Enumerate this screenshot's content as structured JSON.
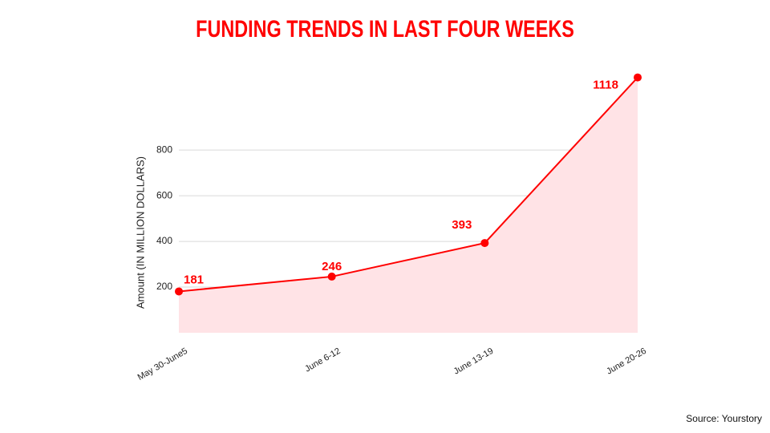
{
  "chart_data": {
    "type": "area-line",
    "title": "FUNDING TRENDS IN LAST FOUR WEEKS",
    "y_label": "Amount (IN MILLION DOLLARS)",
    "source": "Source: Yourstory",
    "categories": [
      "May 30-June5",
      "June 6-12",
      "June 13-19",
      "June 20-26"
    ],
    "values": [
      181,
      246,
      393,
      1118
    ],
    "color": "#ff0000",
    "fill_color": "#ffe3e6",
    "ylim": [
      0,
      1120
    ],
    "yticks": [
      200,
      400,
      600,
      800
    ],
    "grid": true
  }
}
